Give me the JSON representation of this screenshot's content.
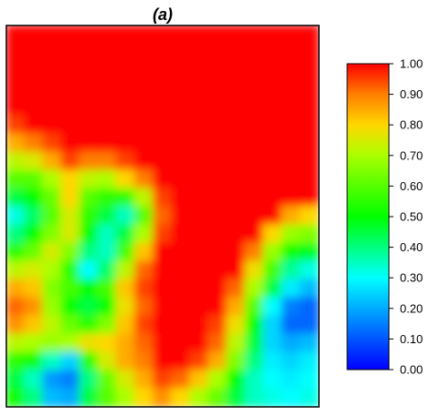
{
  "chart_data": {
    "type": "heatmap",
    "title": "(a)",
    "xlabel": "",
    "ylabel": "",
    "colorbar": {
      "range": [
        0.0,
        1.0
      ],
      "ticks": [
        "1.00",
        "0.90",
        "0.80",
        "0.70",
        "0.60",
        "0.50",
        "0.40",
        "0.30",
        "0.20",
        "0.10",
        "0.00"
      ],
      "colormap": "jet (blue → cyan → green → yellow → red)"
    },
    "grid": false,
    "legend": "colorbar right",
    "grid_shape": [
      21,
      17
    ],
    "values": [
      [
        1.0,
        1.0,
        1.0,
        1.0,
        1.0,
        1.0,
        1.0,
        1.0,
        1.0,
        1.0,
        1.0,
        1.0,
        1.0,
        1.0,
        1.0,
        1.0,
        1.0
      ],
      [
        1.0,
        1.0,
        1.0,
        1.0,
        1.0,
        1.0,
        1.0,
        1.0,
        1.0,
        1.0,
        1.0,
        1.0,
        1.0,
        1.0,
        1.0,
        1.0,
        1.0
      ],
      [
        1.0,
        1.0,
        1.0,
        1.0,
        1.0,
        1.0,
        1.0,
        1.0,
        1.0,
        1.0,
        1.0,
        1.0,
        1.0,
        1.0,
        1.0,
        1.0,
        1.0
      ],
      [
        1.0,
        1.0,
        1.0,
        1.0,
        1.0,
        1.0,
        1.0,
        1.0,
        1.0,
        1.0,
        1.0,
        1.0,
        1.0,
        1.0,
        1.0,
        1.0,
        1.0
      ],
      [
        1.0,
        1.0,
        1.0,
        1.0,
        1.0,
        1.0,
        1.0,
        1.0,
        1.0,
        1.0,
        1.0,
        1.0,
        1.0,
        1.0,
        1.0,
        1.0,
        1.0
      ],
      [
        0.95,
        1.0,
        1.0,
        1.0,
        1.0,
        1.0,
        1.0,
        1.0,
        1.0,
        1.0,
        1.0,
        1.0,
        1.0,
        1.0,
        1.0,
        1.0,
        1.0
      ],
      [
        0.85,
        0.9,
        0.95,
        1.0,
        1.0,
        1.0,
        1.0,
        1.0,
        1.0,
        1.0,
        1.0,
        1.0,
        1.0,
        1.0,
        1.0,
        1.0,
        1.0
      ],
      [
        0.72,
        0.75,
        0.85,
        0.95,
        0.9,
        0.9,
        0.95,
        1.0,
        1.0,
        1.0,
        1.0,
        1.0,
        1.0,
        1.0,
        1.0,
        1.0,
        1.0
      ],
      [
        0.6,
        0.6,
        0.7,
        0.8,
        0.72,
        0.7,
        0.8,
        0.9,
        1.0,
        1.0,
        1.0,
        1.0,
        1.0,
        1.0,
        1.0,
        1.0,
        1.0
      ],
      [
        0.45,
        0.5,
        0.62,
        0.8,
        0.6,
        0.55,
        0.55,
        0.72,
        0.95,
        1.0,
        1.0,
        1.0,
        1.0,
        1.0,
        1.0,
        1.0,
        1.0
      ],
      [
        0.32,
        0.42,
        0.6,
        0.75,
        0.55,
        0.45,
        0.35,
        0.6,
        0.92,
        1.0,
        1.0,
        1.0,
        1.0,
        1.0,
        1.0,
        0.85,
        0.8
      ],
      [
        0.4,
        0.5,
        0.65,
        0.75,
        0.5,
        0.35,
        0.45,
        0.7,
        0.95,
        1.0,
        1.0,
        1.0,
        1.0,
        1.0,
        0.8,
        0.68,
        0.65
      ],
      [
        0.55,
        0.62,
        0.75,
        0.65,
        0.4,
        0.35,
        0.58,
        0.82,
        1.0,
        1.0,
        1.0,
        1.0,
        1.0,
        0.9,
        0.68,
        0.52,
        0.48
      ],
      [
        0.72,
        0.75,
        0.7,
        0.55,
        0.3,
        0.42,
        0.72,
        0.92,
        1.0,
        1.0,
        1.0,
        1.0,
        1.0,
        0.78,
        0.58,
        0.38,
        0.32
      ],
      [
        0.85,
        0.82,
        0.65,
        0.58,
        0.5,
        0.58,
        0.82,
        0.95,
        1.0,
        1.0,
        1.0,
        1.0,
        0.92,
        0.7,
        0.45,
        0.28,
        0.22
      ],
      [
        0.92,
        0.88,
        0.68,
        0.5,
        0.45,
        0.5,
        0.78,
        0.92,
        1.0,
        1.0,
        1.0,
        1.0,
        0.85,
        0.6,
        0.3,
        0.15,
        0.12
      ],
      [
        0.88,
        0.82,
        0.72,
        0.62,
        0.55,
        0.65,
        0.82,
        0.95,
        1.0,
        1.0,
        1.0,
        0.95,
        0.78,
        0.5,
        0.25,
        0.12,
        0.12
      ],
      [
        0.72,
        0.7,
        0.68,
        0.7,
        0.78,
        0.8,
        0.85,
        0.92,
        1.0,
        1.0,
        1.0,
        0.92,
        0.72,
        0.45,
        0.25,
        0.2,
        0.22
      ],
      [
        0.55,
        0.52,
        0.35,
        0.25,
        0.55,
        0.75,
        0.85,
        0.9,
        1.0,
        1.0,
        0.95,
        0.85,
        0.65,
        0.4,
        0.28,
        0.25,
        0.28
      ],
      [
        0.45,
        0.35,
        0.18,
        0.15,
        0.4,
        0.62,
        0.75,
        0.85,
        0.95,
        0.92,
        0.82,
        0.7,
        0.5,
        0.35,
        0.3,
        0.28,
        0.3
      ],
      [
        0.52,
        0.4,
        0.22,
        0.2,
        0.45,
        0.6,
        0.7,
        0.8,
        0.88,
        0.8,
        0.7,
        0.62,
        0.45,
        0.35,
        0.32,
        0.3,
        0.32
      ]
    ]
  }
}
